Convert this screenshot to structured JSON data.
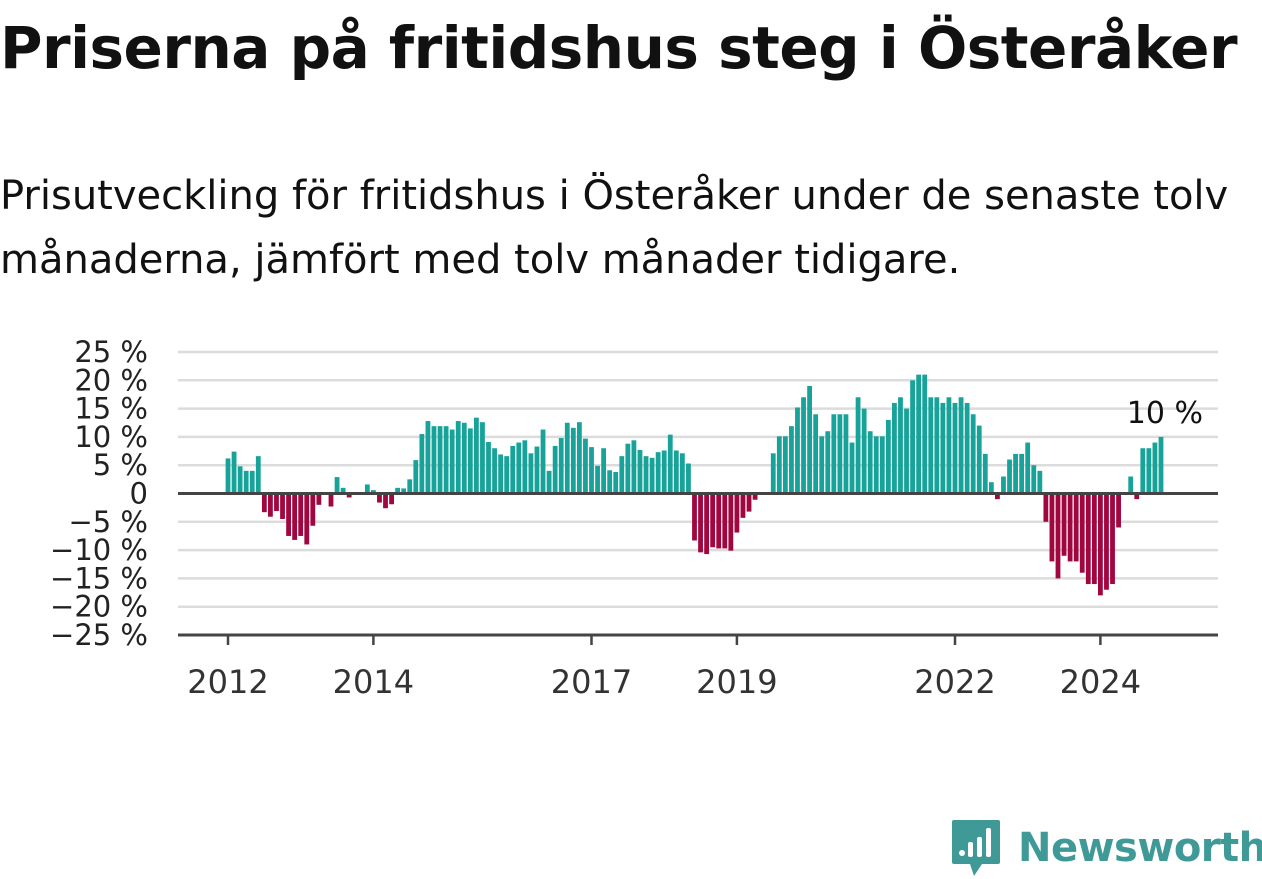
{
  "title": "Priserna på fritidshus steg i Österåker",
  "subtitle": "Prisutveckling för fritidshus i Österåker under de senaste tolv månaderna, jämfört med tolv månader tidigare.",
  "brand": {
    "name": "Newsworthy",
    "color": "#3f9a97"
  },
  "chart_data": {
    "type": "bar",
    "yunit": "%",
    "ylim": [
      -25,
      25
    ],
    "yticks": [
      25,
      20,
      15,
      10,
      5,
      0,
      -5,
      -10,
      -15,
      -20,
      -25
    ],
    "ytick_labels": [
      "25 %",
      "20 %",
      "15 %",
      "10 %",
      "5 %",
      "0",
      "−5 %",
      "−10 %",
      "−15 %",
      "−20 %",
      "−25 %"
    ],
    "xticks": [
      {
        "label": "2012",
        "date": "2012-01"
      },
      {
        "label": "2014",
        "date": "2014-01"
      },
      {
        "label": "2017",
        "date": "2017-01"
      },
      {
        "label": "2019",
        "date": "2019-01"
      },
      {
        "label": "2022",
        "date": "2022-01"
      },
      {
        "label": "2024",
        "date": "2024-01"
      }
    ],
    "grid": true,
    "positive_color": "#17a399",
    "negative_color": "#a0063f",
    "start_date": "2012-01",
    "values": [
      6.2,
      7.4,
      4.8,
      4.0,
      4.0,
      6.6,
      -3.3,
      -4.1,
      -3.1,
      -4.5,
      -7.5,
      -8.2,
      -7.5,
      -9.0,
      -5.7,
      -2.0,
      0.0,
      -2.3,
      2.9,
      1.0,
      -0.7,
      0.0,
      0.0,
      1.6,
      0.6,
      -1.6,
      -2.6,
      -1.9,
      1.0,
      0.9,
      2.5,
      5.9,
      10.5,
      12.8,
      11.9,
      11.9,
      11.9,
      11.3,
      12.8,
      12.5,
      11.5,
      13.4,
      12.6,
      9.1,
      8.0,
      6.9,
      6.6,
      8.4,
      9.0,
      9.4,
      7.1,
      8.3,
      11.3,
      4.0,
      8.4,
      9.8,
      12.5,
      11.6,
      12.6,
      9.7,
      8.2,
      4.9,
      8.0,
      4.1,
      3.8,
      6.6,
      8.8,
      9.4,
      7.7,
      6.6,
      6.3,
      7.3,
      7.6,
      10.4,
      7.6,
      7.1,
      5.3,
      -8.3,
      -10.4,
      -10.7,
      -9.5,
      -9.7,
      -9.7,
      -10.1,
      -6.9,
      -4.3,
      -3.2,
      -1.1,
      0.0,
      0.0,
      7.1,
      10.1,
      10.1,
      11.9,
      15.2,
      17.0,
      19.0,
      14.0,
      10.1,
      11.0,
      14.0,
      14.0,
      14.0,
      9.0,
      17.0,
      15.0,
      11.0,
      10.1,
      10.1,
      13.0,
      16.0,
      17.0,
      15.0,
      20.0,
      21.0,
      21.0,
      17.0,
      17.0,
      16.0,
      17.0,
      16.0,
      17.0,
      16.0,
      14.0,
      12.0,
      7.0,
      2.0,
      -1.0,
      3.0,
      6.0,
      7.0,
      7.0,
      9.0,
      5.0,
      4.0,
      -5.0,
      -12.0,
      -15.0,
      -11.0,
      -12.0,
      -12.0,
      -14.0,
      -16.0,
      -16.0,
      -18.0,
      -17.0,
      -16.0,
      -6.0,
      0.0,
      3.0,
      -1.0,
      8.0,
      8.0,
      9.0,
      10.0
    ],
    "annotation": "10 %"
  }
}
